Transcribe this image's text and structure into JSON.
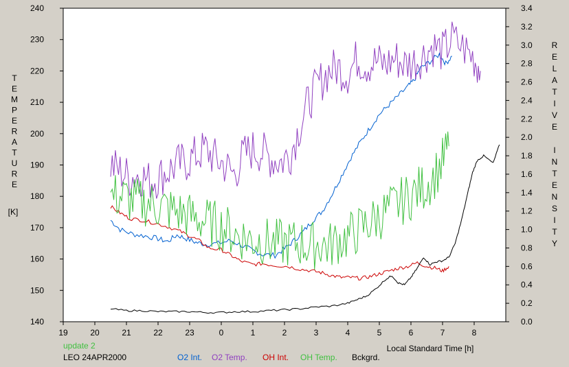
{
  "chart_data": {
    "type": "line",
    "xlabel": "Local Standard Time [h]",
    "ylabel_left": "TEMPERATURE",
    "ylabel_left_unit": "[K]",
    "ylabel_right": "RELATIVE INTENSITY",
    "x_tick_labels": [
      "19",
      "20",
      "21",
      "22",
      "23",
      "0",
      "1",
      "2",
      "3",
      "4",
      "5",
      "6",
      "7",
      "8"
    ],
    "xlim": [
      19,
      33
    ],
    "ylim_left": [
      140,
      240
    ],
    "ylim_right": [
      0,
      3.4
    ],
    "yticks_left": [
      140,
      150,
      160,
      170,
      180,
      190,
      200,
      210,
      220,
      230,
      240
    ],
    "yticks_right": [
      "0.0",
      "0.2",
      "0.4",
      "0.6",
      "0.8",
      "1.0",
      "1.2",
      "1.4",
      "1.6",
      "1.8",
      "2.0",
      "2.2",
      "2.4",
      "2.6",
      "2.8",
      "3.0",
      "3.2",
      "3.4"
    ],
    "grid": false,
    "legend_position": "bottom",
    "series": [
      {
        "name": "O2 Int.",
        "axis": "right",
        "color": "#0060d0",
        "x": [
          20.5,
          20.8,
          21.2,
          21.6,
          22.0,
          22.3,
          22.6,
          22.9,
          23.2,
          23.5,
          23.9,
          24.3,
          24.7,
          25.0,
          25.3,
          25.7,
          26.0,
          26.3,
          26.6,
          26.9,
          27.2,
          27.5,
          27.8,
          28.1,
          28.4,
          28.7,
          29.0,
          29.3,
          29.6,
          29.9,
          30.1,
          30.3,
          30.6,
          30.9,
          31.1,
          31.3
        ],
        "values": [
          1.1,
          1.0,
          0.95,
          0.93,
          0.9,
          0.87,
          0.94,
          0.9,
          0.86,
          0.84,
          0.85,
          0.88,
          0.82,
          0.77,
          0.73,
          0.72,
          0.79,
          0.88,
          0.98,
          1.1,
          1.2,
          1.38,
          1.58,
          1.78,
          1.95,
          2.1,
          2.25,
          2.35,
          2.45,
          2.55,
          2.62,
          2.75,
          2.82,
          2.9,
          2.8,
          2.88
        ]
      },
      {
        "name": "O2 Temp.",
        "axis": "left",
        "color": "#9040c0",
        "x": [
          20.5,
          20.8,
          21.1,
          21.4,
          21.7,
          22.0,
          22.3,
          22.6,
          22.9,
          23.2,
          23.5,
          23.8,
          24.1,
          24.4,
          24.7,
          25.0,
          25.3,
          25.6,
          25.9,
          26.2,
          26.5,
          26.8,
          27.1,
          27.4,
          27.7,
          28.0,
          28.3,
          28.6,
          28.9,
          29.2,
          29.5,
          29.8,
          30.1,
          30.4,
          30.7,
          31.0,
          31.3,
          31.7,
          32.0,
          32.2
        ],
        "values": [
          190,
          188,
          186,
          187,
          185,
          186,
          188,
          190,
          191,
          193,
          195,
          192,
          190,
          187,
          193,
          195,
          194,
          192,
          191,
          194,
          203,
          211,
          216,
          220,
          221,
          219,
          224,
          222,
          223,
          222,
          224,
          222,
          223,
          225,
          228,
          226,
          230,
          227,
          224,
          220
        ]
      },
      {
        "name": "OH Int.",
        "axis": "right",
        "color": "#cc0000",
        "x": [
          20.5,
          20.8,
          21.1,
          21.5,
          21.9,
          22.3,
          22.7,
          23.0,
          23.3,
          23.6,
          24.0,
          24.3,
          24.6,
          25.0,
          25.3,
          25.7,
          26.1,
          26.5,
          26.9,
          27.2,
          27.5,
          27.8,
          28.1,
          28.4,
          28.7,
          29.0,
          29.3,
          29.6,
          29.9,
          30.2,
          30.5,
          30.8,
          31.0,
          31.2
        ],
        "values": [
          1.25,
          1.18,
          1.12,
          1.1,
          1.07,
          1.03,
          0.98,
          0.93,
          0.88,
          0.8,
          0.78,
          0.72,
          0.66,
          0.62,
          0.63,
          0.61,
          0.6,
          0.57,
          0.55,
          0.53,
          0.5,
          0.48,
          0.48,
          0.47,
          0.49,
          0.52,
          0.55,
          0.58,
          0.6,
          0.64,
          0.6,
          0.58,
          0.55,
          0.6
        ]
      },
      {
        "name": "OH Temp.",
        "axis": "left",
        "color": "#40c040",
        "x": [
          20.5,
          20.8,
          21.1,
          21.4,
          21.7,
          22.0,
          22.3,
          22.6,
          22.9,
          23.2,
          23.5,
          23.8,
          24.1,
          24.4,
          24.7,
          25.0,
          25.3,
          25.6,
          25.9,
          26.2,
          26.5,
          26.8,
          27.1,
          27.4,
          27.7,
          28.0,
          28.3,
          28.6,
          28.9,
          29.2,
          29.5,
          29.8,
          30.1,
          30.4,
          30.7,
          31.0,
          31.2
        ],
        "values": [
          180,
          180,
          179,
          178,
          178,
          177,
          176,
          175,
          174,
          173,
          172,
          171,
          170,
          168,
          167,
          166,
          166,
          165,
          165,
          165,
          165,
          164,
          165,
          164,
          166,
          167,
          169,
          171,
          173,
          175,
          177,
          179,
          181,
          183,
          186,
          191,
          196
        ]
      },
      {
        "name": "Bckgrd.",
        "axis": "right",
        "color": "#000000",
        "x": [
          20.5,
          21.0,
          21.5,
          22.0,
          22.5,
          23.0,
          23.5,
          24.0,
          24.5,
          25.0,
          25.5,
          26.0,
          26.5,
          27.0,
          27.5,
          28.0,
          28.3,
          28.6,
          28.9,
          29.2,
          29.4,
          29.6,
          29.8,
          30.0,
          30.2,
          30.4,
          30.6,
          30.8,
          31.0,
          31.2,
          31.4,
          31.6,
          31.8,
          31.95,
          32.1,
          32.3,
          32.6,
          32.8
        ],
        "values": [
          0.14,
          0.12,
          0.12,
          0.11,
          0.11,
          0.11,
          0.1,
          0.1,
          0.11,
          0.11,
          0.12,
          0.13,
          0.14,
          0.16,
          0.17,
          0.2,
          0.24,
          0.28,
          0.36,
          0.46,
          0.5,
          0.42,
          0.4,
          0.48,
          0.58,
          0.7,
          0.62,
          0.65,
          0.66,
          0.7,
          0.85,
          1.1,
          1.4,
          1.62,
          1.75,
          1.8,
          1.72,
          1.92
        ]
      }
    ]
  },
  "footer": {
    "update_label": "update 2",
    "site_date": "LEO 24APR2000",
    "legend": {
      "o2_int": "O2 Int.",
      "o2_temp": "O2 Temp.",
      "oh_int": "OH Int.",
      "oh_temp": "OH Temp.",
      "bckgrd": "Bckgrd."
    }
  }
}
